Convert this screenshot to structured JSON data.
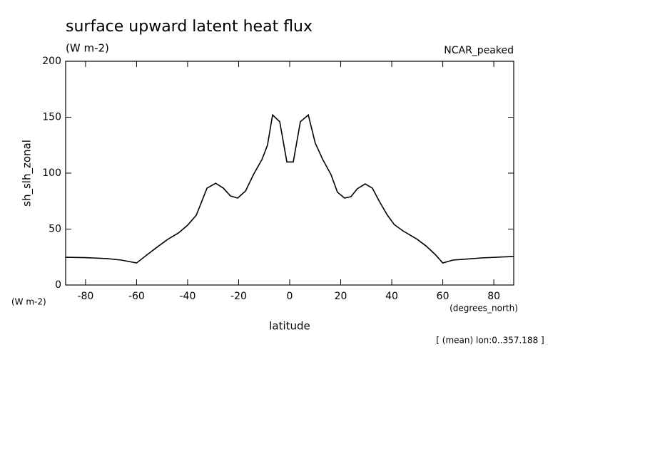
{
  "chart_data": {
    "type": "line",
    "title": "surface upward latent heat flux",
    "subtitle": "(W m-2)",
    "dataset": "NCAR_peaked",
    "y_label": "sh_slh_zonal",
    "y_units": "(W m-2)",
    "x_label": "latitude",
    "x_units": "(degrees_north)",
    "note": "[ (mean) lon:0..357.188 ]",
    "x": [
      -87.7,
      -80,
      -71.5,
      -66,
      -60,
      -56,
      -52,
      -47.8,
      -43.6,
      -40,
      -36.6,
      -32.4,
      -29,
      -26,
      -23.2,
      -20.4,
      -17.3,
      -14.2,
      -10.9,
      -8.7,
      -6.7,
      -3.9,
      -1.1,
      1.4,
      4.2,
      7.3,
      10,
      13,
      16.2,
      18.7,
      21.5,
      24,
      26.5,
      29.6,
      32.4,
      35.2,
      38.3,
      41,
      44.4,
      47.2,
      50,
      53.4,
      57,
      60,
      64,
      67.6,
      75,
      87.7
    ],
    "series": [
      {
        "color": "#000000",
        "values": [
          24.8,
          24.5,
          23.6,
          22.3,
          19.7,
          26.8,
          33.8,
          40.8,
          46.5,
          53.5,
          62.4,
          86.6,
          91,
          86.6,
          79.6,
          77.7,
          84,
          98.7,
          112,
          125,
          152,
          146,
          110,
          110,
          146,
          152,
          127,
          112,
          98.7,
          83,
          77.7,
          79,
          86,
          90.4,
          86.6,
          74.5,
          62.4,
          54,
          48.4,
          44.6,
          40.8,
          35,
          27.4,
          19.7,
          22.3,
          22.9,
          24.2,
          25.5
        ]
      }
    ],
    "xlim": [
      -87.8,
      87.8
    ],
    "ylim": [
      0,
      200
    ],
    "xticks": [
      -80,
      -60,
      -40,
      -20,
      0,
      20,
      40,
      60,
      80
    ],
    "yticks": [
      0,
      50,
      100,
      150,
      200
    ]
  }
}
